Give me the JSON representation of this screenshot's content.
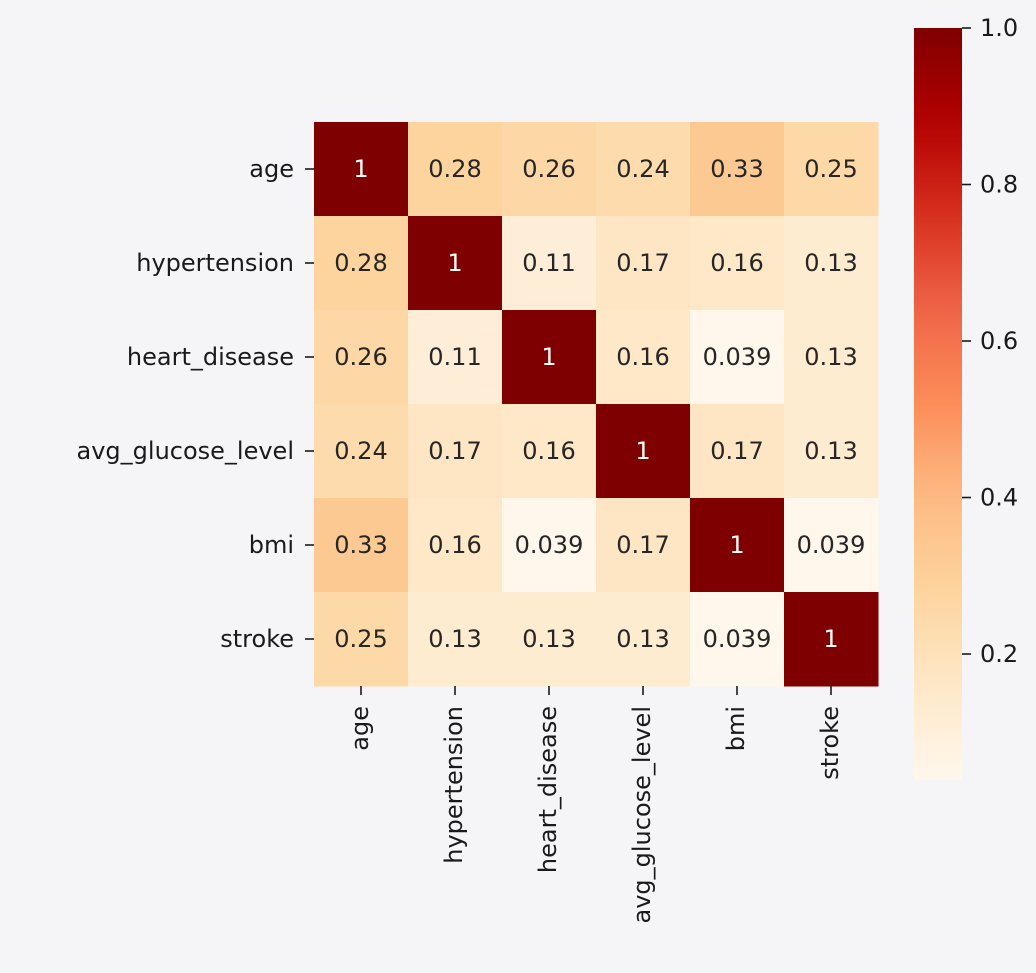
{
  "chart_data": {
    "type": "heatmap",
    "title": "",
    "xlabel": "",
    "ylabel": "",
    "row_labels": [
      "age",
      "hypertension",
      "heart_disease",
      "avg_glucose_level",
      "bmi",
      "stroke"
    ],
    "col_labels": [
      "age",
      "hypertension",
      "heart_disease",
      "avg_glucose_level",
      "bmi",
      "stroke"
    ],
    "values": [
      [
        1,
        0.28,
        0.26,
        0.24,
        0.33,
        0.25
      ],
      [
        0.28,
        1,
        0.11,
        0.17,
        0.16,
        0.13
      ],
      [
        0.26,
        0.11,
        1,
        0.16,
        0.039,
        0.13
      ],
      [
        0.24,
        0.17,
        0.16,
        1,
        0.17,
        0.13
      ],
      [
        0.33,
        0.16,
        0.039,
        0.17,
        1,
        0.039
      ],
      [
        0.25,
        0.13,
        0.13,
        0.13,
        0.039,
        1
      ]
    ],
    "annotations": true,
    "colormap": "OrRd",
    "colorbar": {
      "min": 0.039,
      "max": 1.0,
      "ticks": [
        0.2,
        0.4,
        0.6,
        0.8,
        1.0
      ],
      "tick_labels": [
        "0.2",
        "0.4",
        "0.6",
        "0.8",
        "1.0"
      ]
    },
    "grid": false,
    "legend": "none"
  },
  "colors": {
    "background": "#f5f5f7",
    "axis_text": "#1a1a1a",
    "annotation_light": "#ffffff",
    "annotation_dark": "#262626"
  }
}
